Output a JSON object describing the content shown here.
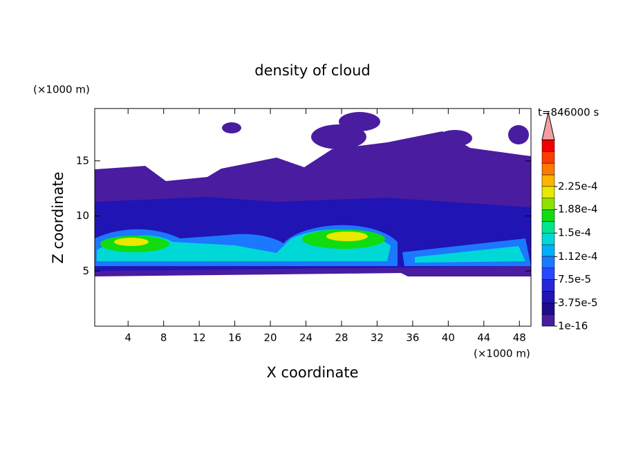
{
  "chart_data": {
    "type": "contour",
    "title": "density of cloud",
    "xlabel": "X coordinate",
    "ylabel": "Z coordinate",
    "x_unit": "(×1000 m)",
    "y_unit": "(×1000 m)",
    "annotation": "t=846000 s",
    "xlim": [
      0.25,
      49.3
    ],
    "xticks": [
      4,
      8,
      12,
      16,
      20,
      24,
      28,
      32,
      36,
      40,
      44,
      48
    ],
    "ylim": [
      0,
      19.75
    ],
    "yticks": [
      5,
      10,
      15
    ],
    "colorbar": {
      "colors": [
        "#4a1ca0",
        "#1c0c8c",
        "#2014b4",
        "#2428d8",
        "#2848ff",
        "#1c78ff",
        "#00b0ff",
        "#00d8d8",
        "#00e690",
        "#10dc10",
        "#90e000",
        "#e8e800",
        "#ffb400",
        "#ff7800",
        "#ff3c00",
        "#f00000"
      ],
      "extend_color": "#f4a0a0",
      "ticks": [
        {
          "value": 1e-16,
          "label": "1e-16"
        },
        {
          "value": 3.75e-05,
          "label": "3.75e-5"
        },
        {
          "value": 7.5e-05,
          "label": "7.5e-5"
        },
        {
          "value": 0.000112,
          "label": "1.12e-4"
        },
        {
          "value": 0.00015,
          "label": "1.5e-4"
        },
        {
          "value": 0.000188,
          "label": "1.88e-4"
        },
        {
          "value": 0.000225,
          "label": "2.25e-4"
        }
      ]
    }
  }
}
